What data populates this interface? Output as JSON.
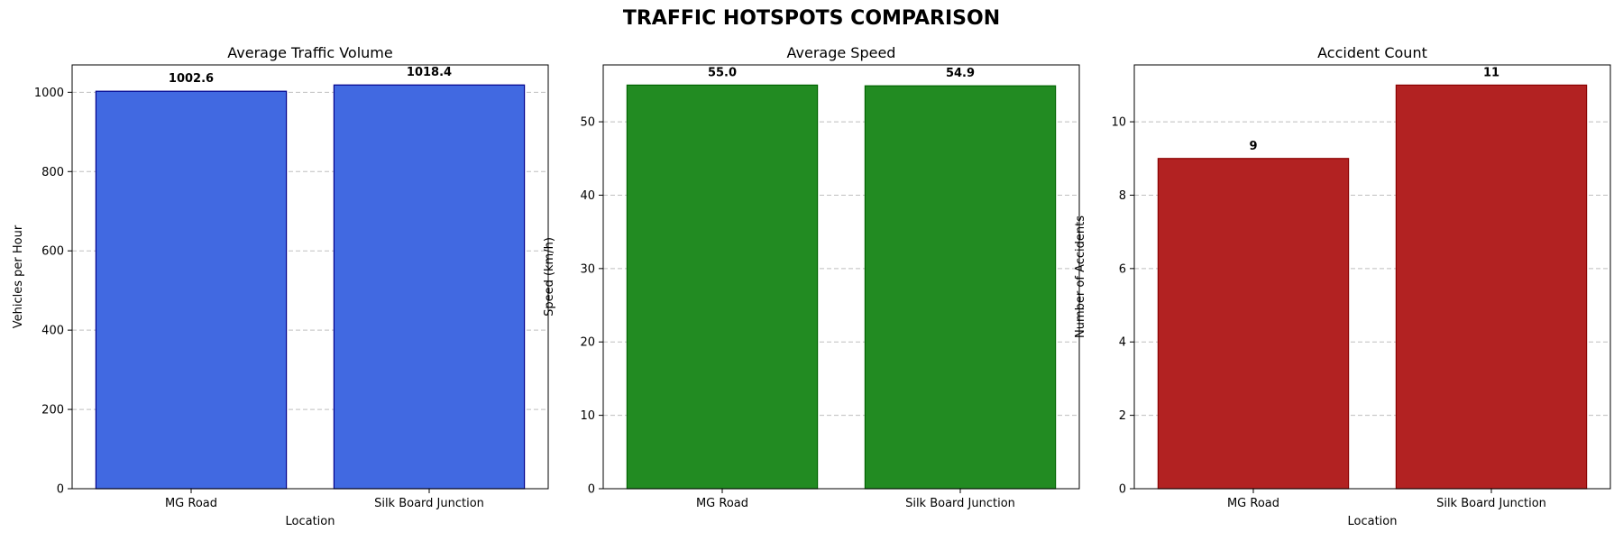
{
  "figure": {
    "title": "TRAFFIC HOTSPOTS COMPARISON"
  },
  "chart_data": [
    {
      "type": "bar",
      "title": "Average Traffic Volume",
      "xlabel": "Location",
      "ylabel": "Vehicles per Hour",
      "categories": [
        "MG Road",
        "Silk Board Junction"
      ],
      "values": [
        1002.6,
        1018.4
      ],
      "value_labels": [
        "1002.6",
        "1018.4"
      ],
      "ylim": [
        0,
        1069
      ],
      "yticks": [
        0,
        200,
        400,
        600,
        800,
        1000
      ],
      "color": "#4169e1",
      "edge_color": "#00008b",
      "grid": "y-dashed"
    },
    {
      "type": "bar",
      "title": "Average Speed",
      "xlabel": "",
      "ylabel": "Speed (km/h)",
      "categories": [
        "MG Road",
        "Silk Board Junction"
      ],
      "values": [
        55.0,
        54.9
      ],
      "value_labels": [
        "55.0",
        "54.9"
      ],
      "ylim": [
        0,
        57.75
      ],
      "yticks": [
        0,
        10,
        20,
        30,
        40,
        50
      ],
      "color": "#228b22",
      "edge_color": "#006400",
      "grid": "y-dashed"
    },
    {
      "type": "bar",
      "title": "Accident Count",
      "xlabel": "Location",
      "ylabel": "Number of Accidents",
      "categories": [
        "MG Road",
        "Silk Board Junction"
      ],
      "values": [
        9,
        11
      ],
      "value_labels": [
        "9",
        "11"
      ],
      "ylim": [
        0,
        11.55
      ],
      "yticks": [
        0,
        2,
        4,
        6,
        8,
        10
      ],
      "color": "#b22222",
      "edge_color": "#8b0000",
      "grid": "y-dashed"
    }
  ]
}
